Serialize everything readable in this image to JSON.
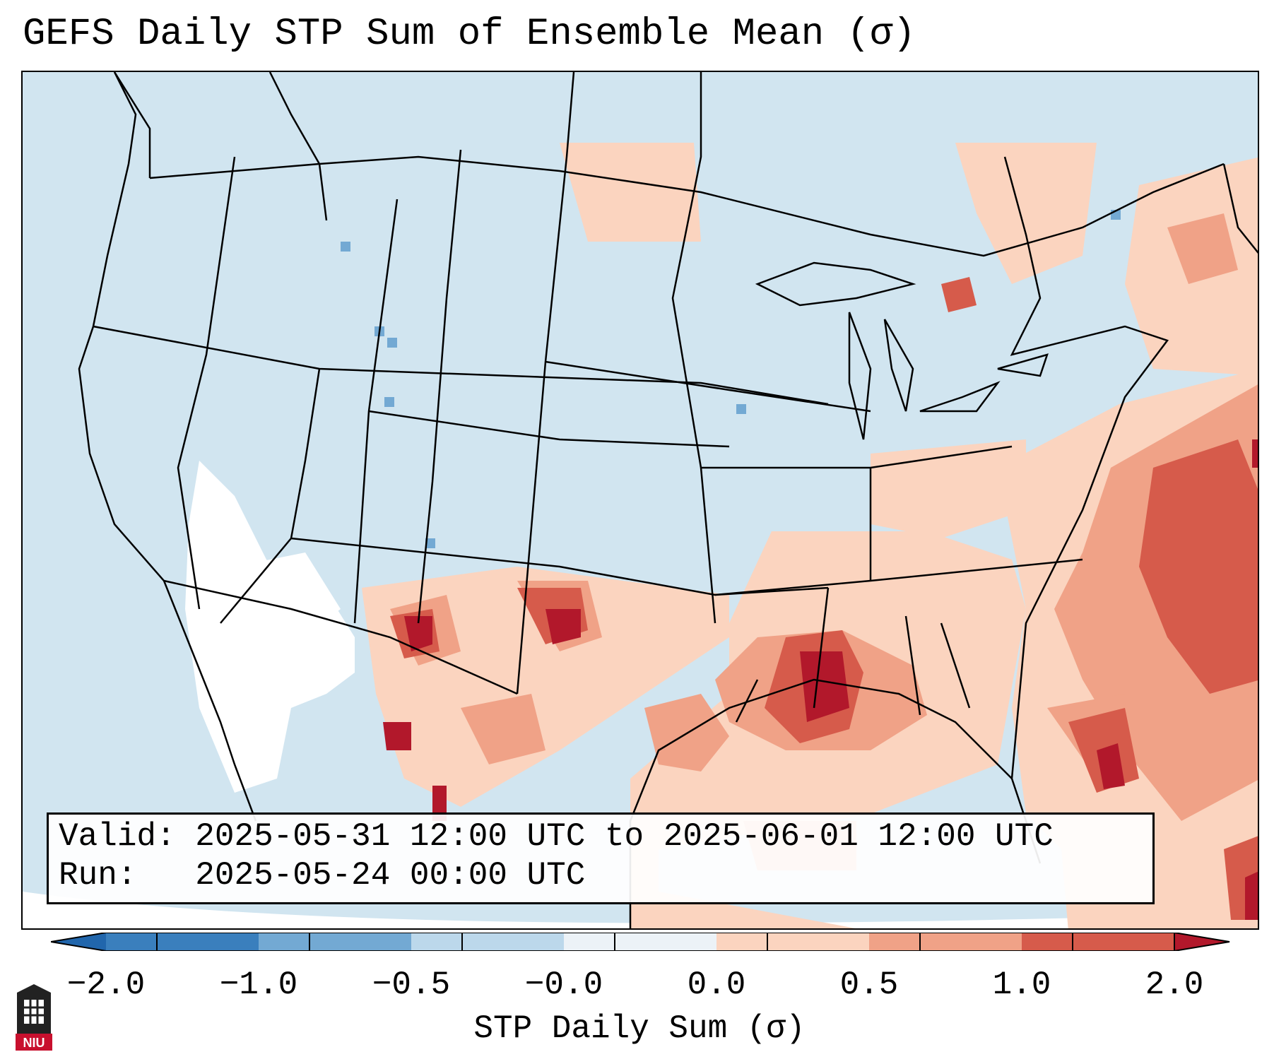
{
  "title": "GEFS Daily STP Sum of Ensemble Mean (σ)",
  "info": {
    "valid_label": "Valid:",
    "valid_value": "2025-05-31 12:00 UTC to 2025-06-01 12:00 UTC",
    "run_label": "Run:",
    "run_value": "2025-05-24 00:00 UTC"
  },
  "colorbar": {
    "label": "STP Daily Sum (σ)",
    "ticks": [
      "−2.0",
      "−1.0",
      "−0.5",
      "−0.0",
      "0.0",
      "0.5",
      "1.0",
      "2.0"
    ],
    "colors": [
      "#3a7fbd",
      "#73a9d3",
      "#bcd8eb",
      "#ecf2f7",
      "#fbd4bf",
      "#f0a287",
      "#d65b4b",
      "#b2182b"
    ],
    "under_color": "#2166ac",
    "over_color": "#b2182b",
    "neutral_fill": "#d1e5f0",
    "land_white": "#ffffff"
  },
  "logo": {
    "text": "NIU",
    "color": "#c8102e"
  }
}
